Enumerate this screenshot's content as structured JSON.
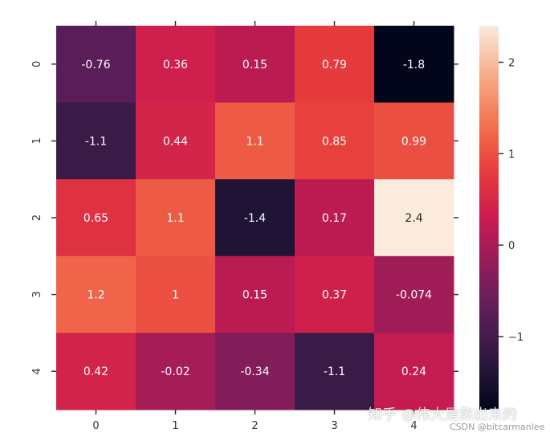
{
  "chart_data": {
    "type": "heatmap",
    "x_ticks": [
      "0",
      "1",
      "2",
      "3",
      "4"
    ],
    "y_ticks": [
      "0",
      "1",
      "2",
      "3",
      "4"
    ],
    "values": [
      [
        -0.76,
        0.36,
        0.15,
        0.79,
        -1.8
      ],
      [
        -1.1,
        0.44,
        1.1,
        0.85,
        0.99
      ],
      [
        0.65,
        1.1,
        -1.4,
        0.17,
        2.4
      ],
      [
        1.2,
        1.0,
        0.15,
        0.37,
        -0.074
      ],
      [
        0.42,
        -0.02,
        -0.34,
        -1.1,
        0.24
      ]
    ],
    "annotations": [
      [
        "-0.76",
        "0.36",
        "0.15",
        "0.79",
        "-1.8"
      ],
      [
        "-1.1",
        "0.44",
        "1.1",
        "0.85",
        "0.99"
      ],
      [
        "0.65",
        "1.1",
        "-1.4",
        "0.17",
        "2.4"
      ],
      [
        "1.2",
        "1",
        "0.15",
        "0.37",
        "-0.074"
      ],
      [
        "0.42",
        "-0.02",
        "-0.34",
        "-1.1",
        "0.24"
      ]
    ],
    "colorbar": {
      "range": [
        -1.8,
        2.4
      ],
      "ticks": [
        2,
        1,
        0,
        -1
      ],
      "tick_labels": [
        "2",
        "1",
        "0",
        "−1"
      ]
    }
  },
  "watermark": {
    "main": "知乎 @伟大是熬出来的",
    "sub": "CSDN @bitcarmanlee"
  }
}
